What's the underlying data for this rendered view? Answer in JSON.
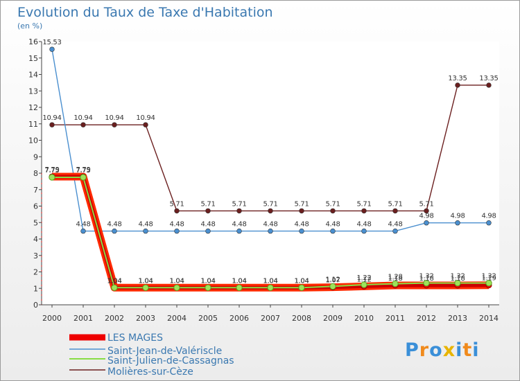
{
  "chart_data": {
    "type": "line",
    "title": "Evolution du Taux de Taxe d'Habitation",
    "subtitle": "(en %)",
    "x": [
      "2000",
      "2001",
      "2002",
      "2003",
      "2004",
      "2005",
      "2006",
      "2007",
      "2008",
      "2009",
      "2010",
      "2011",
      "2012",
      "2013",
      "2014"
    ],
    "ylim": [
      0,
      16
    ],
    "yticks": [
      0,
      1,
      2,
      3,
      4,
      5,
      6,
      7,
      8,
      9,
      10,
      11,
      12,
      13,
      14,
      15,
      16
    ],
    "grid": false,
    "legend_position": "bottom-left",
    "series": [
      {
        "name": "LES MAGES",
        "color": "#ee0000",
        "values": [
          7.79,
          7.79,
          1.04,
          1.04,
          1.04,
          1.04,
          1.04,
          1.04,
          1.04,
          1.07,
          1.12,
          1.18,
          1.18,
          1.18,
          1.19
        ],
        "labels": [
          "7.79",
          "7.79",
          "1.04",
          "1.04",
          "1.04",
          "1.04",
          "1.04",
          "1.04",
          "1.04",
          "1.07",
          "1.12",
          "1.18",
          "1.18",
          "1.18",
          "1.19"
        ]
      },
      {
        "name": "Saint-Jean-de-Valériscle",
        "color": "#4a8fcf",
        "values": [
          15.53,
          4.48,
          4.48,
          4.48,
          4.48,
          4.48,
          4.48,
          4.48,
          4.48,
          4.48,
          4.48,
          4.48,
          4.98,
          4.98,
          4.98
        ],
        "labels": [
          "15.53",
          "4.48",
          "4.48",
          "4.48",
          "4.48",
          "4.48",
          "4.48",
          "4.48",
          "4.48",
          "4.48",
          "4.48",
          "4.48",
          "4.98",
          "4.98",
          "4.98"
        ]
      },
      {
        "name": "Saint-Julien-de-Cassagnas",
        "color": "#88dd44",
        "values": [
          7.75,
          7.75,
          1.04,
          1.04,
          1.04,
          1.04,
          1.04,
          1.04,
          1.04,
          1.12,
          1.22,
          1.28,
          1.32,
          1.32,
          1.32
        ],
        "labels": [
          "7.75",
          "7.75",
          "1.04",
          "1.04",
          "1.04",
          "1.04",
          "1.04",
          "1.04",
          "1.04",
          "1.12",
          "1.22",
          "1.28",
          "1.32",
          "1.32",
          "1.32"
        ]
      },
      {
        "name": "Molières-sur-Cèze",
        "color": "#6b1f1f",
        "values": [
          10.94,
          10.94,
          10.94,
          10.94,
          5.71,
          5.71,
          5.71,
          5.71,
          5.71,
          5.71,
          5.71,
          5.71,
          5.71,
          13.35,
          13.35
        ],
        "labels": [
          "10.94",
          "10.94",
          "10.94",
          "10.94",
          "5.71",
          "5.71",
          "5.71",
          "5.71",
          "5.71",
          "5.71",
          "5.71",
          "5.71",
          "5.71",
          "13.35",
          "13.35"
        ]
      }
    ]
  },
  "logo": {
    "letters": [
      "P",
      "r",
      "o",
      "x",
      "i",
      "t",
      "i"
    ],
    "colors": [
      "#3a8fd8",
      "#f08a1c",
      "#3a8fd8",
      "#e8b400",
      "#3a8fd8",
      "#f08a1c",
      "#3a8fd8"
    ]
  }
}
